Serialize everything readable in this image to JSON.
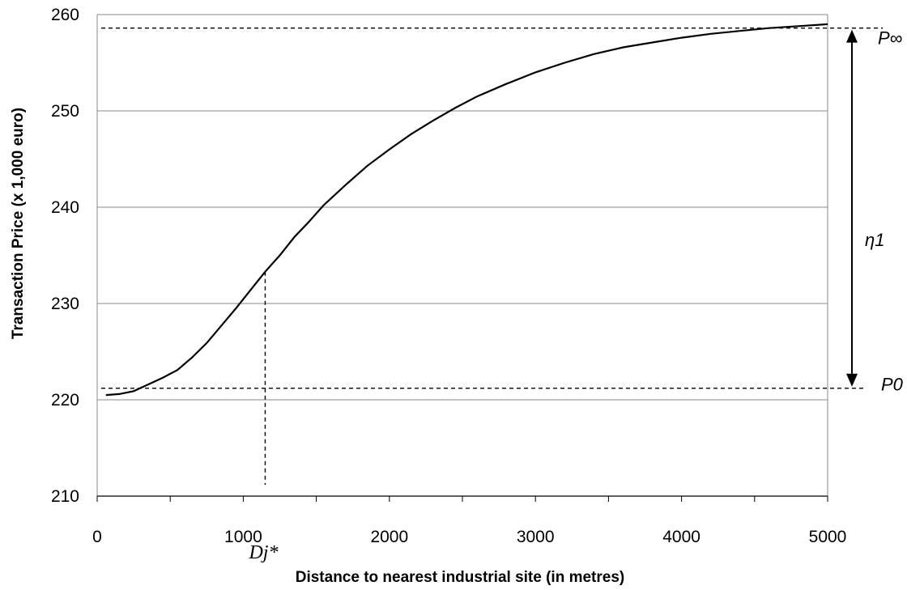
{
  "chart_data": {
    "type": "line",
    "title": "",
    "xlabel": "Distance to nearest industrial site (in metres)",
    "ylabel": "Transaction Price (x 1,000 euro)",
    "xlim": [
      0,
      5000
    ],
    "ylim": [
      210,
      260
    ],
    "x_ticks": [
      0,
      1000,
      2000,
      3000,
      4000,
      5000
    ],
    "y_ticks": [
      210,
      220,
      230,
      240,
      250,
      260
    ],
    "grid": "horizontal",
    "legend": "none",
    "series": [
      {
        "x": [
          60,
          150,
          250,
          350,
          450,
          550,
          650,
          750,
          850,
          950,
          1050,
          1150,
          1250,
          1350,
          1450,
          1550,
          1700,
          1850,
          2000,
          2150,
          2300,
          2450,
          2600,
          2800,
          3000,
          3200,
          3400,
          3600,
          3800,
          4000,
          4200,
          4400,
          4600,
          4800,
          5000
        ],
        "y": [
          220.5,
          220.6,
          220.9,
          221.6,
          222.3,
          223.1,
          224.4,
          225.9,
          227.7,
          229.5,
          231.4,
          233.3,
          235.0,
          236.9,
          238.5,
          240.2,
          242.3,
          244.3,
          246.0,
          247.6,
          249.0,
          250.3,
          251.5,
          252.8,
          254.0,
          255.0,
          255.9,
          256.6,
          257.1,
          257.6,
          258.0,
          258.3,
          258.6,
          258.8,
          259.0
        ]
      }
    ],
    "color": "#000000",
    "annotations": {
      "p_inf": {
        "label": "P∞",
        "y": 258.6
      },
      "p_zero": {
        "label": "P0",
        "y": 221.2
      },
      "eta": {
        "label": "η1"
      },
      "d_star": {
        "label": "Dj*",
        "x": 1150,
        "y": 233.3
      }
    }
  }
}
